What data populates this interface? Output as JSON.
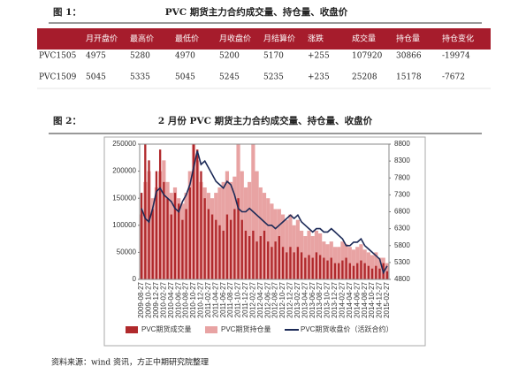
{
  "figure1": {
    "label": "图 1：",
    "title": "PVC 期货主力合约成交量、持仓量、收盘价"
  },
  "table": {
    "header": [
      "月开盘价",
      "最高价",
      "最低价",
      "月收盘价",
      "月结算价",
      "涨跌",
      "成交量",
      "持仓量",
      "持仓变化"
    ],
    "rows": [
      [
        "PVC1505",
        "4975",
        "5280",
        "4970",
        "5200",
        "5170",
        "+255",
        "107920",
        "30866",
        "-19974"
      ],
      [
        "PVC1509",
        "5045",
        "5335",
        "5045",
        "5245",
        "5235",
        "+235",
        "25208",
        "15178",
        "-7672"
      ]
    ]
  },
  "figure2": {
    "label": "图 2：",
    "title": "2 月份 PVC 期货主力合约成交量、持仓量、收盘价"
  },
  "chart_data": {
    "type": "bar-line",
    "categories": [
      "2009-08-27",
      null,
      "2009-10-27",
      null,
      "2009-12-27",
      null,
      "2010-02-27",
      null,
      "2010-04-27",
      null,
      "2010-06-27",
      null,
      "2010-08-27",
      null,
      "2010-10-27",
      null,
      "2010-12-27",
      null,
      "2011-02-27",
      null,
      "2011-04-27",
      null,
      "2011-06-27",
      null,
      "2011-08-27",
      null,
      "2011-10-27",
      null,
      "2011-12-27",
      null,
      "2012-02-27",
      null,
      "2012-04-27",
      null,
      "2012-06-27",
      null,
      "2012-08-27",
      null,
      "2012-10-27",
      null,
      "2012-12-27",
      null,
      "2013-02-27",
      null,
      "2013-04-27",
      null,
      "2013-06-27",
      null,
      "2013-08-27",
      null,
      "2013-10-27",
      null,
      "2013-12-27",
      null,
      "2014-02-27",
      null,
      "2014-04-27",
      null,
      "2014-06-27",
      null,
      "2014-08-27",
      null,
      "2014-10-27",
      null,
      "2014-12-27",
      null,
      "2015-02-27"
    ],
    "series": [
      {
        "name": "PVC期货成交量",
        "color": "#b0292c",
        "values": [
          160000,
          250000,
          220000,
          130000,
          200000,
          240000,
          180000,
          150000,
          120000,
          160000,
          140000,
          110000,
          130000,
          170000,
          250000,
          240000,
          200000,
          150000,
          130000,
          120000,
          110000,
          100000,
          90000,
          120000,
          110000,
          130000,
          150000,
          110000,
          90000,
          80000,
          90000,
          70000,
          80000,
          90000,
          70000,
          60000,
          70000,
          80000,
          60000,
          50000,
          60000,
          50000,
          60000,
          50000,
          40000,
          45000,
          40000,
          50000,
          45000,
          40000,
          35000,
          40000,
          30000,
          30000,
          35000,
          40000,
          30000,
          25000,
          30000,
          35000,
          30000,
          25000,
          20000,
          25000,
          20000,
          30000,
          15000
        ]
      },
      {
        "name": "PVC期货持仓量",
        "color": "#e8a3a3",
        "values": [
          120000,
          180000,
          200000,
          150000,
          170000,
          200000,
          220000,
          180000,
          160000,
          170000,
          150000,
          140000,
          160000,
          200000,
          250000,
          220000,
          180000,
          170000,
          160000,
          150000,
          160000,
          170000,
          180000,
          200000,
          180000,
          190000,
          250000,
          200000,
          170000,
          180000,
          250000,
          200000,
          170000,
          160000,
          150000,
          140000,
          130000,
          130000,
          120000,
          110000,
          120000,
          100000,
          110000,
          90000,
          80000,
          90000,
          80000,
          90000,
          85000,
          70000,
          65000,
          70000,
          60000,
          60000,
          70000,
          65000,
          60000,
          55000,
          60000,
          65000,
          55000,
          50000,
          45000,
          50000,
          40000,
          40000,
          30000
        ]
      },
      {
        "name": "PVC期货收盘价（活跃合约）",
        "color": "#1c2a57",
        "axis": "y2",
        "values": [
          6900,
          6600,
          6500,
          6900,
          7400,
          7500,
          7300,
          7200,
          7100,
          6900,
          6800,
          7100,
          7300,
          7600,
          8100,
          8600,
          8200,
          8300,
          8100,
          7900,
          7700,
          7600,
          7500,
          7700,
          7600,
          7300,
          6900,
          6800,
          6800,
          6900,
          6800,
          6700,
          6600,
          6500,
          6400,
          6400,
          6300,
          6400,
          6500,
          6600,
          6700,
          6600,
          6700,
          6500,
          6400,
          6300,
          6200,
          6300,
          6300,
          6200,
          6200,
          6300,
          6200,
          6100,
          6000,
          5800,
          5800,
          5900,
          5900,
          6000,
          5800,
          5700,
          5600,
          5500,
          5400,
          5000,
          5200
        ]
      }
    ],
    "ylim": [
      0,
      250000
    ],
    "yticks": [
      0,
      50000,
      100000,
      150000,
      200000,
      250000
    ],
    "y2lim": [
      4800,
      8800
    ],
    "y2ticks": [
      4800,
      5300,
      5800,
      6300,
      6800,
      7300,
      7800,
      8300,
      8800
    ],
    "legend": "bottom"
  },
  "source": "资料来源：wind 资讯，方正中期研究院整理"
}
